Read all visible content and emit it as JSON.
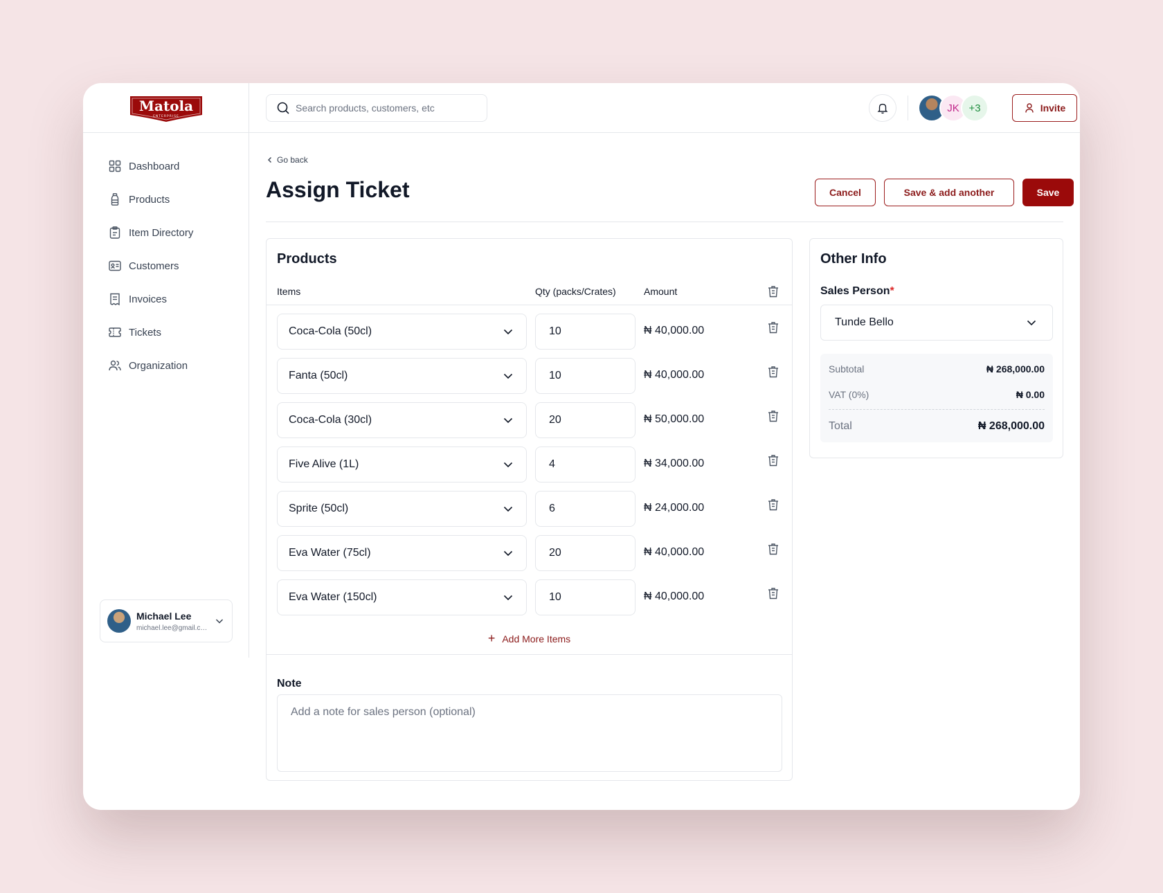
{
  "brand": {
    "name": "Matola",
    "tagline": "ENTERPRISE",
    "color": "#9b0a0a"
  },
  "search": {
    "placeholder": "Search products, customers, etc"
  },
  "header": {
    "avatars": [
      {
        "type": "photo"
      },
      {
        "initials": "JK"
      },
      {
        "label": "+3"
      }
    ],
    "invite_label": "Invite"
  },
  "sidebar": {
    "items": [
      {
        "label": "Dashboard",
        "icon": "grid-icon"
      },
      {
        "label": "Products",
        "icon": "bottle-icon"
      },
      {
        "label": "Item Directory",
        "icon": "clipboard-icon"
      },
      {
        "label": "Customers",
        "icon": "id-card-icon"
      },
      {
        "label": "Invoices",
        "icon": "receipt-icon"
      },
      {
        "label": "Tickets",
        "icon": "ticket-icon"
      },
      {
        "label": "Organization",
        "icon": "users-icon"
      }
    ],
    "user": {
      "name": "Michael Lee",
      "email": "michael.lee@gmail.com"
    }
  },
  "page": {
    "back_label": "Go back",
    "title": "Assign Ticket",
    "actions": {
      "cancel": "Cancel",
      "save_another": "Save & add another",
      "save": "Save"
    }
  },
  "products": {
    "title": "Products",
    "columns": {
      "items": "Items",
      "qty": "Qty (packs/Crates)",
      "amount": "Amount"
    },
    "rows": [
      {
        "item": "Coca-Cola (50cl)",
        "qty": "10",
        "amount": "₦ 40,000.00"
      },
      {
        "item": "Fanta (50cl)",
        "qty": "10",
        "amount": "₦ 40,000.00"
      },
      {
        "item": "Coca-Cola (30cl)",
        "qty": "20",
        "amount": "₦ 50,000.00"
      },
      {
        "item": "Five Alive (1L)",
        "qty": "4",
        "amount": "₦ 34,000.00"
      },
      {
        "item": "Sprite (50cl)",
        "qty": "6",
        "amount": "₦ 24,000.00"
      },
      {
        "item": "Eva Water (75cl)",
        "qty": "20",
        "amount": "₦ 40,000.00"
      },
      {
        "item": "Eva Water (150cl)",
        "qty": "10",
        "amount": "₦ 40,000.00"
      }
    ],
    "add_more_label": "Add More Items"
  },
  "note": {
    "label": "Note",
    "placeholder": "Add a note for sales person (optional)"
  },
  "other_info": {
    "title": "Other Info",
    "sales_person_label": "Sales Person",
    "required_mark": "*",
    "sales_person": "Tunde Bello",
    "subtotal_label": "Subtotal",
    "subtotal": "₦ 268,000.00",
    "vat_label": "VAT (0%)",
    "vat": "₦ 0.00",
    "total_label": "Total",
    "total": "₦ 268,000.00"
  }
}
